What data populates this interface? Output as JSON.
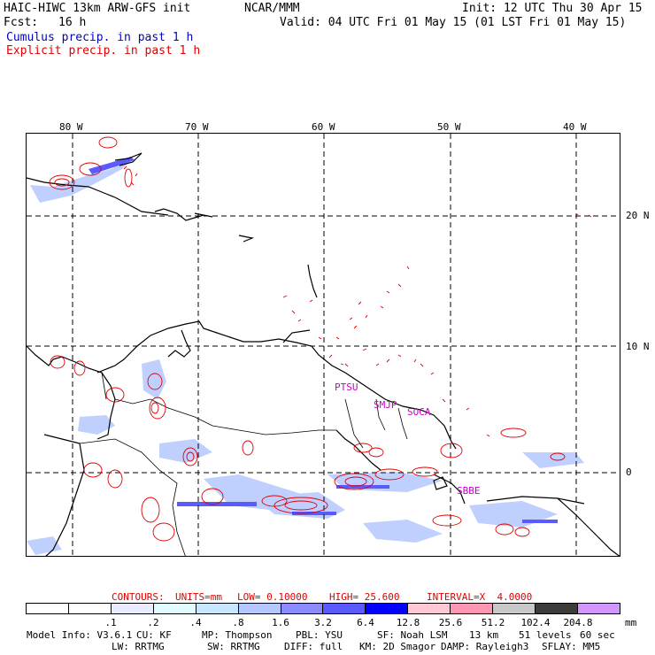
{
  "header": {
    "model": "HAIC-HIWC 13km ARW-GFS init",
    "org": "NCAR/MMM",
    "init": "Init: 12 UTC Thu 30 Apr 15",
    "fcst_label": "Fcst:",
    "fcst_value": "16 h",
    "valid": "Valid: 04 UTC Fri 01 May 15 (01 LST Fri 01 May 15)",
    "legend_cumulus": "Cumulus precip. in past 1 h",
    "legend_explicit": "Explicit precip. in past 1 h"
  },
  "map": {
    "lon_labels": [
      "80 W",
      "70 W",
      "60 W",
      "50 W",
      "40 W"
    ],
    "lat_labels": [
      "20 N",
      "10 N",
      "0"
    ],
    "stations": [
      "PTSU",
      "SMJP",
      "SOCA",
      "SBBE"
    ]
  },
  "contours": {
    "label": "CONTOURS:",
    "units": "UNITS=mm",
    "low": "LOW= 0.10000",
    "high": "HIGH= 25.600",
    "interval": "INTERVAL=X  4.0000"
  },
  "colorbar": {
    "colors": [
      "#ffffff",
      "#ffffff",
      "#ebebff",
      "#e1fbff",
      "#c8e6ff",
      "#b4c8ff",
      "#8c8cff",
      "#5a5aff",
      "#0000ff",
      "#ffc8d2",
      "#ff96b4",
      "#c8c8c8",
      "#3c3c3c",
      "#d296ff"
    ],
    "ticks": [
      ".1",
      ".2",
      ".4",
      ".8",
      "1.6",
      "3.2",
      "6.4",
      "12.8",
      "25.6",
      "51.2",
      "102.4",
      "204.8"
    ],
    "unit": "mm"
  },
  "footer": {
    "line1": [
      "Model Info: V3.6.1",
      "CU: KF",
      "MP: Thompson",
      "PBL: YSU",
      "SF: Noah LSM",
      "13 km",
      "51 levels",
      "60 sec"
    ],
    "line2": [
      "LW: RRTMG",
      "SW: RRTMG",
      "DIFF: full",
      "KM: 2D Smagor",
      "DAMP: Rayleigh3",
      "SFLAY: MM5"
    ]
  }
}
